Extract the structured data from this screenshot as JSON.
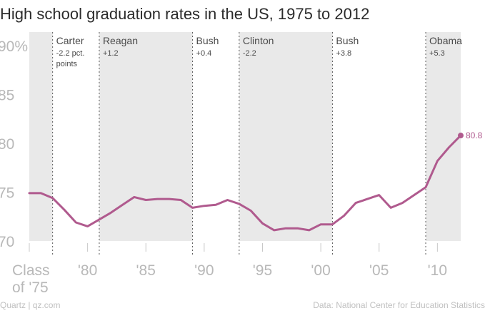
{
  "chart_data": {
    "type": "line",
    "title": "High school graduation rates in the US, 1975 to 2012",
    "xlabel": "",
    "ylabel": "",
    "xlim": [
      1975,
      2012
    ],
    "ylim": [
      70,
      90
    ],
    "yticks": [
      {
        "value": 70,
        "label": "70"
      },
      {
        "value": 75,
        "label": "75"
      },
      {
        "value": 80,
        "label": "80"
      },
      {
        "value": 85,
        "label": "85"
      },
      {
        "value": 90,
        "label": "90%"
      }
    ],
    "xticks": [
      {
        "value": 1975,
        "lines": [
          "Class",
          "of '75"
        ]
      },
      {
        "value": 1980,
        "lines": [
          "'80"
        ]
      },
      {
        "value": 1985,
        "lines": [
          "'85"
        ]
      },
      {
        "value": 1990,
        "lines": [
          "'90"
        ]
      },
      {
        "value": 1995,
        "lines": [
          "'95"
        ]
      },
      {
        "value": 2000,
        "lines": [
          "'00"
        ]
      },
      {
        "value": 2005,
        "lines": [
          "'05"
        ]
      },
      {
        "value": 2010,
        "lines": [
          "'10"
        ]
      }
    ],
    "series": [
      {
        "color": "#b05a8e",
        "x": [
          1975,
          1976,
          1977,
          1978,
          1979,
          1980,
          1981,
          1982,
          1983,
          1984,
          1985,
          1986,
          1987,
          1988,
          1989,
          1990,
          1991,
          1992,
          1993,
          1994,
          1995,
          1996,
          1997,
          1998,
          1999,
          2000,
          2001,
          2002,
          2003,
          2004,
          2005,
          2006,
          2007,
          2008,
          2009,
          2010,
          2011,
          2012
        ],
        "y": [
          74.9,
          74.9,
          74.4,
          73.2,
          71.9,
          71.5,
          72.2,
          72.9,
          73.7,
          74.5,
          74.2,
          74.3,
          74.3,
          74.2,
          73.4,
          73.6,
          73.7,
          74.2,
          73.8,
          73.1,
          71.8,
          71.1,
          71.3,
          71.3,
          71.1,
          71.7,
          71.7,
          72.6,
          73.9,
          74.3,
          74.7,
          73.4,
          73.9,
          74.7,
          75.5,
          78.2,
          79.6,
          80.8
        ]
      }
    ],
    "end_label": "80.8",
    "presidencies": [
      {
        "name": "Carter",
        "start": 1977,
        "end": 1981,
        "shaded": false,
        "change_lines": [
          "-2.2 pct.",
          "points"
        ]
      },
      {
        "name": "Reagan",
        "start": 1981,
        "end": 1989,
        "shaded": true,
        "change_lines": [
          "+1.2"
        ]
      },
      {
        "name": "Bush",
        "start": 1989,
        "end": 1993,
        "shaded": false,
        "change_lines": [
          "+0.4"
        ]
      },
      {
        "name": "Clinton",
        "start": 1993,
        "end": 2001,
        "shaded": true,
        "change_lines": [
          "-2.2"
        ]
      },
      {
        "name": "Bush",
        "start": 2001,
        "end": 2009,
        "shaded": false,
        "change_lines": [
          "+3.8"
        ]
      },
      {
        "name": "Obama",
        "start": 2009,
        "end": 2012,
        "shaded": true,
        "change_lines": [
          "+5.3"
        ]
      }
    ],
    "pre_period": {
      "start": 1975,
      "end": 1977,
      "shaded": true
    },
    "grid": false,
    "legend": "none"
  },
  "footer": {
    "left": "Quartz | qz.com",
    "right": "Data: National Center for Education Statistics"
  },
  "colors": {
    "line": "#b05a8e",
    "shade": "#e9e9e9",
    "divider": "#5a5a5a",
    "tick_text": "#b8b8b8"
  }
}
